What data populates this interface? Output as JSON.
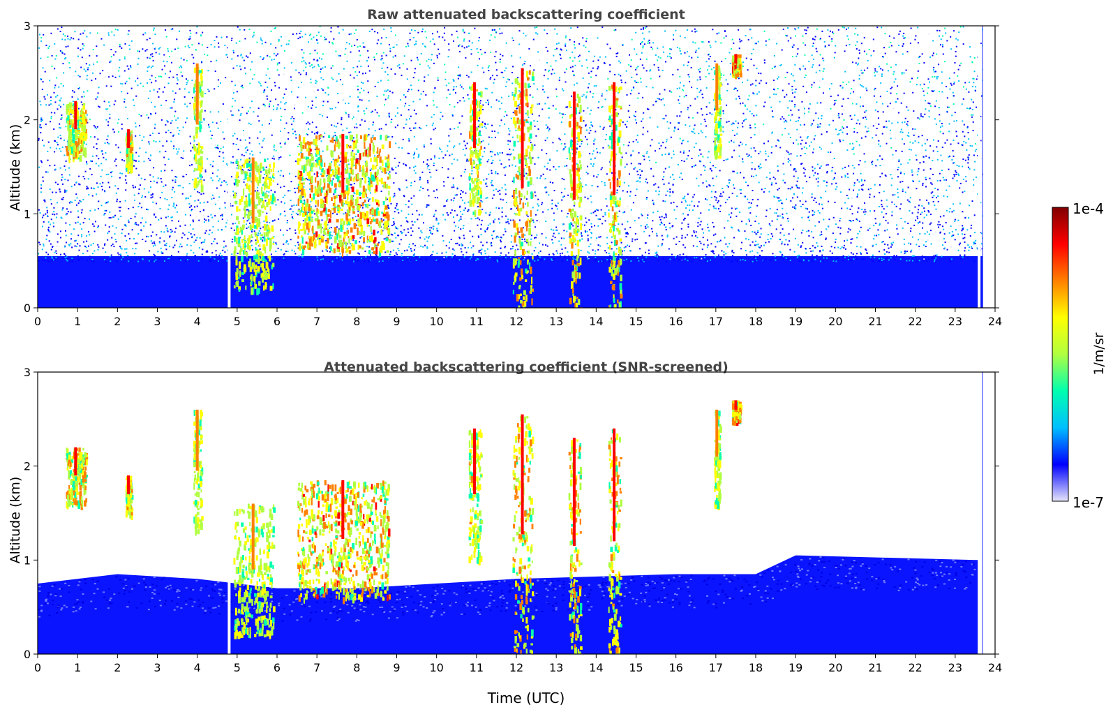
{
  "chart_data": [
    {
      "type": "heatmap",
      "title": "Raw attenuated backscattering coefficient",
      "xlabel": "",
      "ylabel": "Altitude (km)",
      "xlim": [
        0,
        24
      ],
      "ylim": [
        0,
        3
      ],
      "xticks": [
        "0",
        "1",
        "2",
        "3",
        "4",
        "5",
        "6",
        "7",
        "8",
        "9",
        "10",
        "11",
        "12",
        "13",
        "14",
        "15",
        "16",
        "17",
        "18",
        "19",
        "20",
        "21",
        "22",
        "23",
        "24"
      ],
      "yticks": [
        "0",
        "1",
        "2",
        "3"
      ],
      "screened": false,
      "gap_times": [
        4.8,
        23.6
      ],
      "data_end_time": 23.7,
      "cloud_layers": [
        {
          "t_start": 0.7,
          "t_end": 1.2,
          "alt_bottom": 1.6,
          "alt_top": 2.2,
          "intensity": 0.9
        },
        {
          "t_start": 2.2,
          "t_end": 2.35,
          "alt_bottom": 1.5,
          "alt_top": 1.9,
          "intensity": 0.8
        },
        {
          "t_start": 3.9,
          "t_end": 4.1,
          "alt_bottom": 1.3,
          "alt_top": 2.6,
          "intensity": 0.6
        },
        {
          "t_start": 4.9,
          "t_end": 5.9,
          "alt_bottom": 0.2,
          "alt_top": 1.6,
          "intensity": 0.6
        },
        {
          "t_start": 6.5,
          "t_end": 8.8,
          "alt_bottom": 0.6,
          "alt_top": 1.85,
          "intensity": 1.0
        },
        {
          "t_start": 10.8,
          "t_end": 11.1,
          "alt_bottom": 1.0,
          "alt_top": 2.4,
          "intensity": 0.7
        },
        {
          "t_start": 11.9,
          "t_end": 12.4,
          "alt_bottom": 0.0,
          "alt_top": 2.55,
          "intensity": 0.95
        },
        {
          "t_start": 13.3,
          "t_end": 13.6,
          "alt_bottom": 0.0,
          "alt_top": 2.3,
          "intensity": 0.9
        },
        {
          "t_start": 14.3,
          "t_end": 14.6,
          "alt_bottom": 0.0,
          "alt_top": 2.4,
          "intensity": 0.85
        },
        {
          "t_start": 16.95,
          "t_end": 17.1,
          "alt_bottom": 1.6,
          "alt_top": 2.6,
          "intensity": 0.6
        },
        {
          "t_start": 17.4,
          "t_end": 17.6,
          "alt_bottom": 2.5,
          "alt_top": 2.7,
          "intensity": 1.0
        }
      ]
    },
    {
      "type": "heatmap",
      "title": "Attenuated backscattering coefficient (SNR-screened)",
      "xlabel": "Time (UTC)",
      "ylabel": "Altitude (km)",
      "xlim": [
        0,
        24
      ],
      "ylim": [
        0,
        3
      ],
      "xticks": [
        "0",
        "1",
        "2",
        "3",
        "4",
        "5",
        "6",
        "7",
        "8",
        "9",
        "10",
        "11",
        "12",
        "13",
        "14",
        "15",
        "16",
        "17",
        "18",
        "19",
        "20",
        "21",
        "22",
        "23",
        "24"
      ],
      "yticks": [
        "0",
        "1",
        "2",
        "3"
      ],
      "screened": true,
      "gap_times": [
        4.8,
        23.6
      ],
      "data_end_time": 23.7,
      "boundary_layer_top": [
        {
          "t": 0.0,
          "alt": 0.75
        },
        {
          "t": 2.0,
          "alt": 0.85
        },
        {
          "t": 4.0,
          "alt": 0.8
        },
        {
          "t": 6.0,
          "alt": 0.7
        },
        {
          "t": 8.0,
          "alt": 0.7
        },
        {
          "t": 12.0,
          "alt": 0.8
        },
        {
          "t": 16.0,
          "alt": 0.85
        },
        {
          "t": 18.0,
          "alt": 0.85
        },
        {
          "t": 19.0,
          "alt": 1.05
        },
        {
          "t": 23.6,
          "alt": 1.0
        }
      ],
      "cloud_layers": [
        {
          "t_start": 0.7,
          "t_end": 1.2,
          "alt_bottom": 1.6,
          "alt_top": 2.2,
          "intensity": 0.9
        },
        {
          "t_start": 2.2,
          "t_end": 2.35,
          "alt_bottom": 1.5,
          "alt_top": 1.9,
          "intensity": 0.8
        },
        {
          "t_start": 3.9,
          "t_end": 4.1,
          "alt_bottom": 1.3,
          "alt_top": 2.6,
          "intensity": 0.6
        },
        {
          "t_start": 4.9,
          "t_end": 5.9,
          "alt_bottom": 0.2,
          "alt_top": 1.6,
          "intensity": 0.6
        },
        {
          "t_start": 6.5,
          "t_end": 8.8,
          "alt_bottom": 0.6,
          "alt_top": 1.85,
          "intensity": 1.0
        },
        {
          "t_start": 10.8,
          "t_end": 11.1,
          "alt_bottom": 1.0,
          "alt_top": 2.4,
          "intensity": 0.7
        },
        {
          "t_start": 11.9,
          "t_end": 12.4,
          "alt_bottom": 0.0,
          "alt_top": 2.55,
          "intensity": 0.95
        },
        {
          "t_start": 13.3,
          "t_end": 13.6,
          "alt_bottom": 0.0,
          "alt_top": 2.3,
          "intensity": 0.9
        },
        {
          "t_start": 14.3,
          "t_end": 14.6,
          "alt_bottom": 0.0,
          "alt_top": 2.4,
          "intensity": 0.85
        },
        {
          "t_start": 16.95,
          "t_end": 17.1,
          "alt_bottom": 1.6,
          "alt_top": 2.6,
          "intensity": 0.6
        },
        {
          "t_start": 17.4,
          "t_end": 17.6,
          "alt_bottom": 2.5,
          "alt_top": 2.7,
          "intensity": 1.0
        }
      ]
    }
  ],
  "colorbar": {
    "label": "1/m/sr",
    "max_label": "1e-4",
    "min_label": "1e-7",
    "scale": "log",
    "range": [
      1e-07,
      0.0001
    ],
    "colormap": "jet",
    "colors": [
      "#e6e6fa",
      "#0000ff",
      "#00bfff",
      "#00ffb0",
      "#b0ff40",
      "#ffff00",
      "#ff8000",
      "#ff0000",
      "#800000"
    ]
  }
}
